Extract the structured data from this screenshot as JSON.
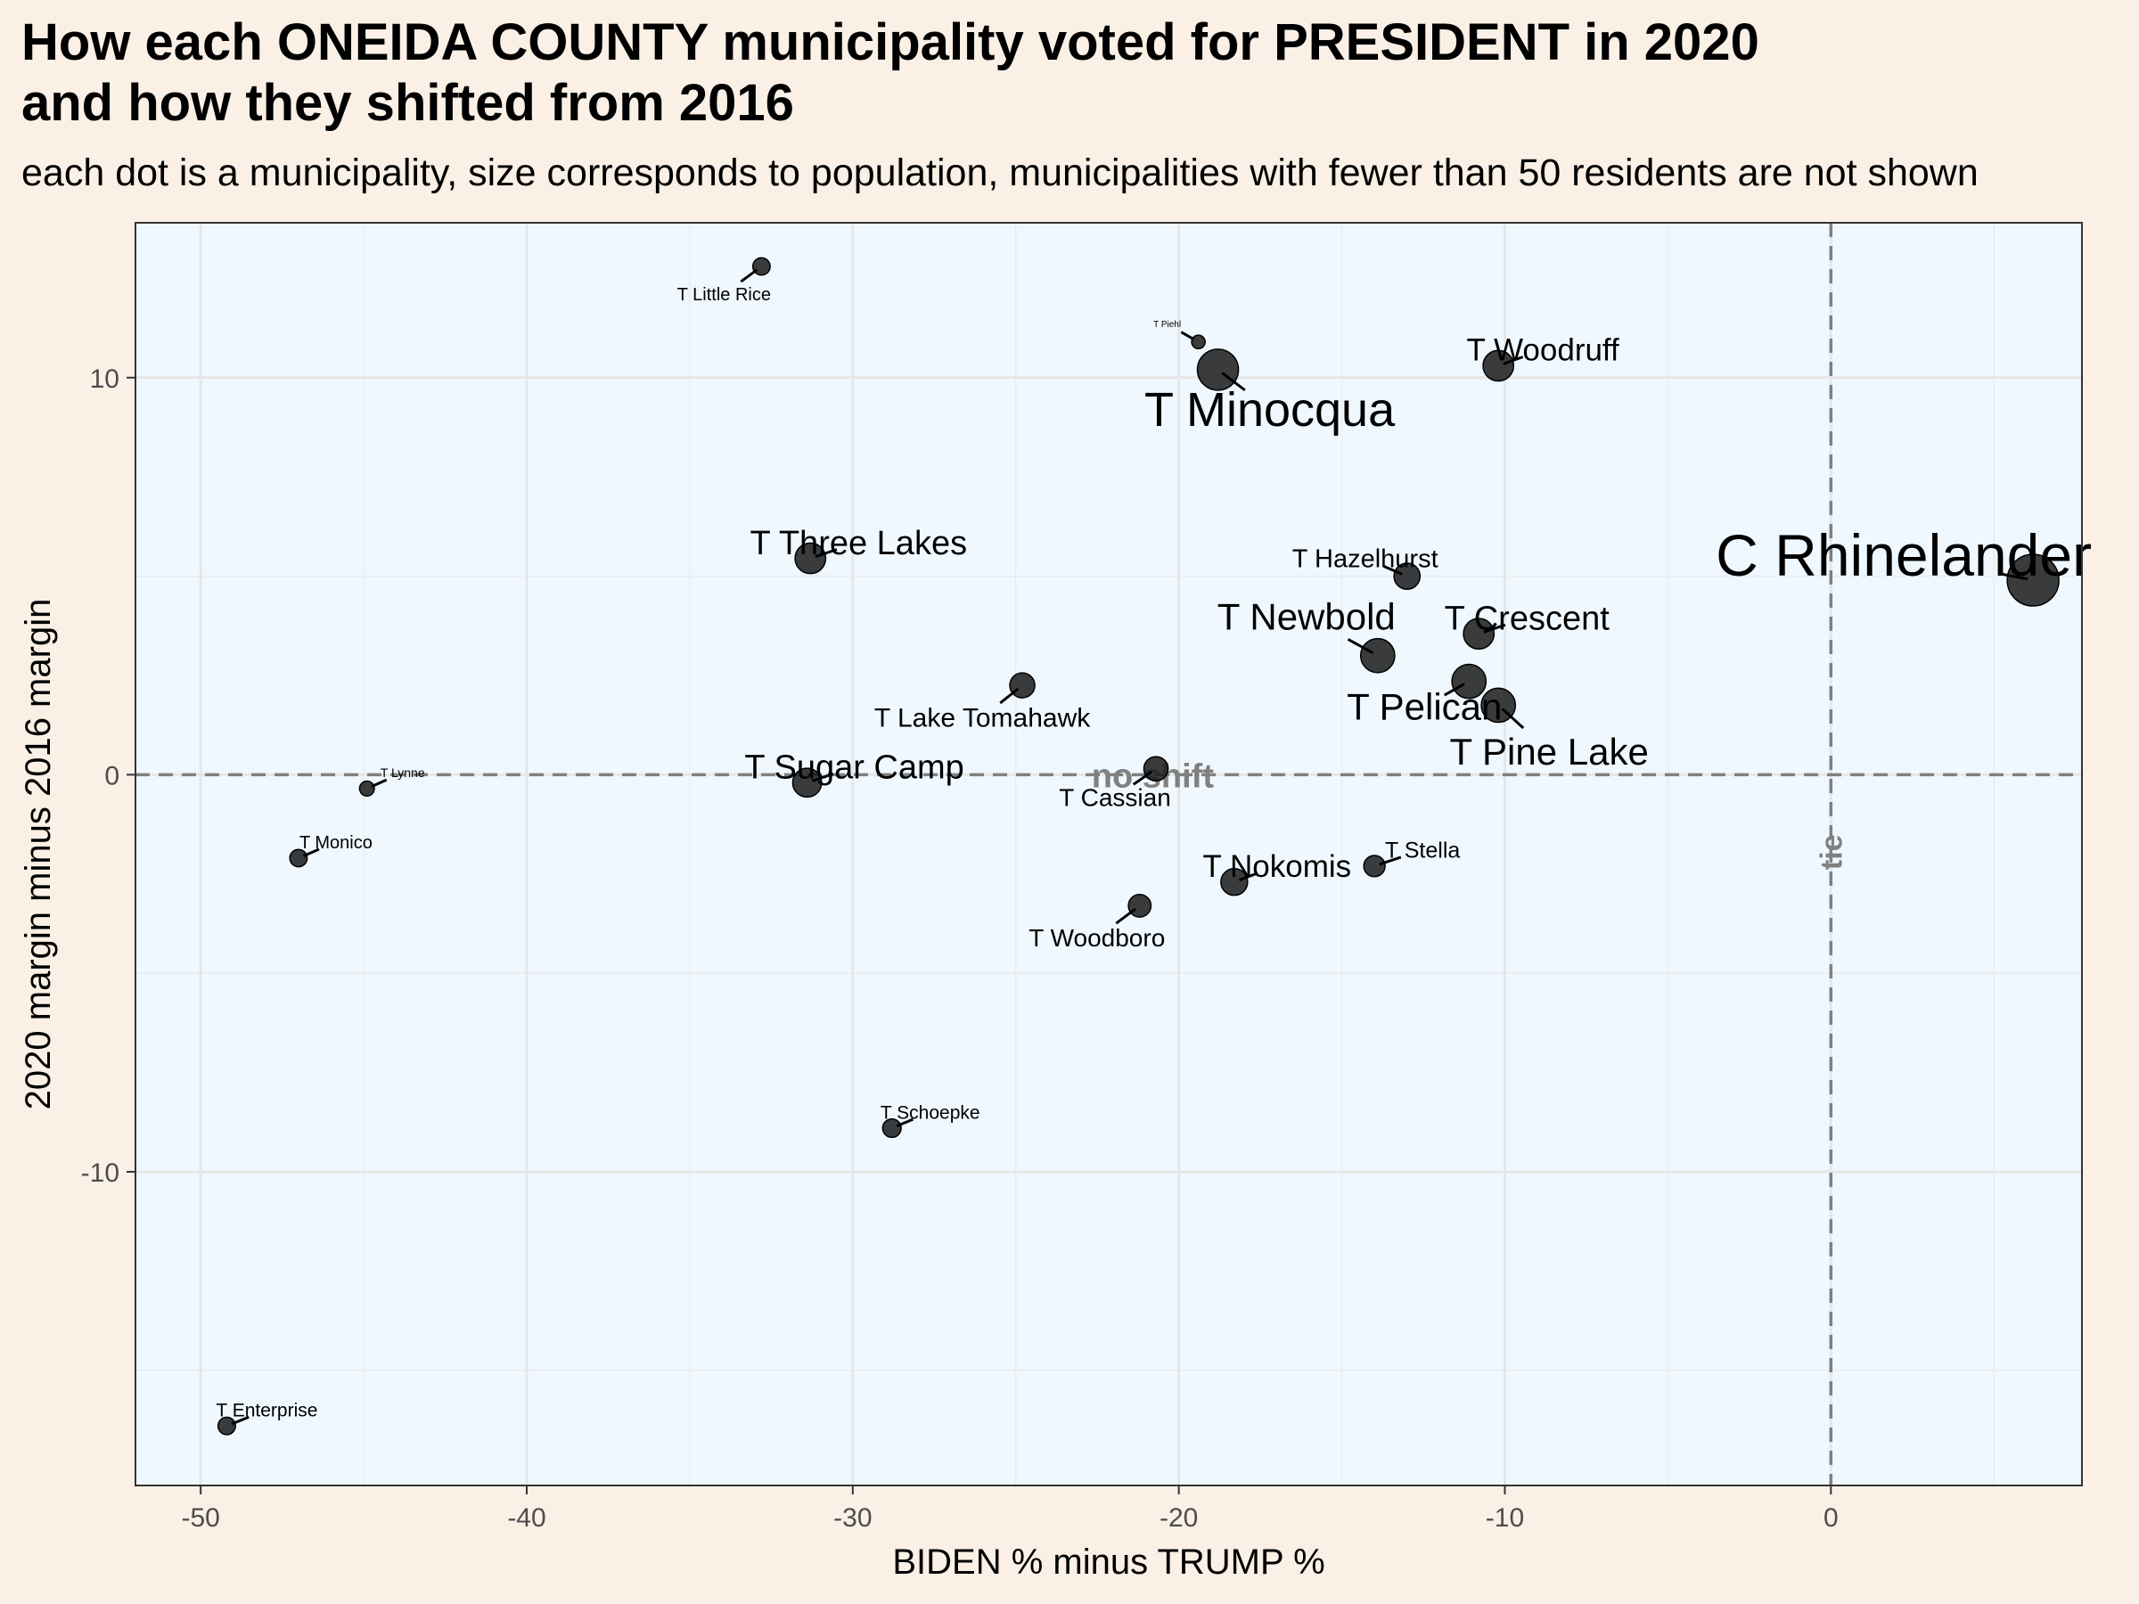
{
  "header": {
    "title_line1": "How each ONEIDA COUNTY municipality voted for PRESIDENT in 2020",
    "title_line2": "and how they shifted from 2016",
    "subtitle": "each dot is a municipality, size corresponds to population, municipalities with fewer than 50 residents are not shown"
  },
  "chart_data": {
    "type": "scatter",
    "xlabel": "BIDEN % minus TRUMP %",
    "ylabel": "2020 margin minus 2016 margin",
    "xlim": [
      -52,
      7.7
    ],
    "ylim": [
      -17.9,
      13.9
    ],
    "x_ticks": [
      -50,
      -40,
      -30,
      -20,
      -10,
      0
    ],
    "x_tick_labels": [
      "-50",
      "-40",
      "-30",
      "-20",
      "-10",
      "0"
    ],
    "y_ticks": [
      -10,
      0,
      10
    ],
    "y_tick_labels": [
      "-10",
      "0",
      "10"
    ],
    "grid": true,
    "reference_lines": [
      {
        "axis": "y",
        "value": 0,
        "label": "no shift"
      },
      {
        "axis": "x",
        "value": 0,
        "label": "tie"
      }
    ],
    "colors": {
      "panel_background": "#f0f8ff",
      "page_background": "#faf0e6",
      "point_fill": "#1a1a1a",
      "reference_line": "#808080"
    },
    "points": [
      {
        "name": "C Rhinelander",
        "x": 6.2,
        "y": 4.9,
        "population": 7800
      },
      {
        "name": "T Minocqua",
        "x": -18.8,
        "y": 10.2,
        "population": 4400
      },
      {
        "name": "T Newbold",
        "x": -13.9,
        "y": 3.0,
        "population": 2700
      },
      {
        "name": "T Pelican",
        "x": -11.1,
        "y": 2.35,
        "population": 2700
      },
      {
        "name": "T Pine Lake",
        "x": -10.2,
        "y": 1.75,
        "population": 2700
      },
      {
        "name": "T Crescent",
        "x": -10.8,
        "y": 3.55,
        "population": 2000
      },
      {
        "name": "T Three Lakes",
        "x": -31.3,
        "y": 5.45,
        "population": 2000
      },
      {
        "name": "T Sugar Camp",
        "x": -31.4,
        "y": -0.2,
        "population": 1700
      },
      {
        "name": "T Woodruff",
        "x": -10.2,
        "y": 10.3,
        "population": 2000
      },
      {
        "name": "T Hazelhurst",
        "x": -13.0,
        "y": 5.0,
        "population": 1250
      },
      {
        "name": "T Lake Tomahawk",
        "x": -24.8,
        "y": 2.25,
        "population": 1100
      },
      {
        "name": "T Cassian",
        "x": -20.7,
        "y": 0.15,
        "population": 1000
      },
      {
        "name": "T Nokomis",
        "x": -18.3,
        "y": -2.7,
        "population": 1350
      },
      {
        "name": "T Stella",
        "x": -14.0,
        "y": -2.3,
        "population": 650
      },
      {
        "name": "T Woodboro",
        "x": -21.2,
        "y": -3.3,
        "population": 800
      },
      {
        "name": "T Schoepke",
        "x": -28.8,
        "y": -8.9,
        "population": 390
      },
      {
        "name": "T Little Rice",
        "x": -32.8,
        "y": 12.8,
        "population": 300
      },
      {
        "name": "T Piehl",
        "x": -19.4,
        "y": 10.9,
        "population": 90
      },
      {
        "name": "T Lynne",
        "x": -44.9,
        "y": -0.35,
        "population": 150
      },
      {
        "name": "T Monico",
        "x": -47.0,
        "y": -2.1,
        "population": 300
      },
      {
        "name": "T Enterprise",
        "x": -49.2,
        "y": -16.4,
        "population": 310
      }
    ]
  }
}
